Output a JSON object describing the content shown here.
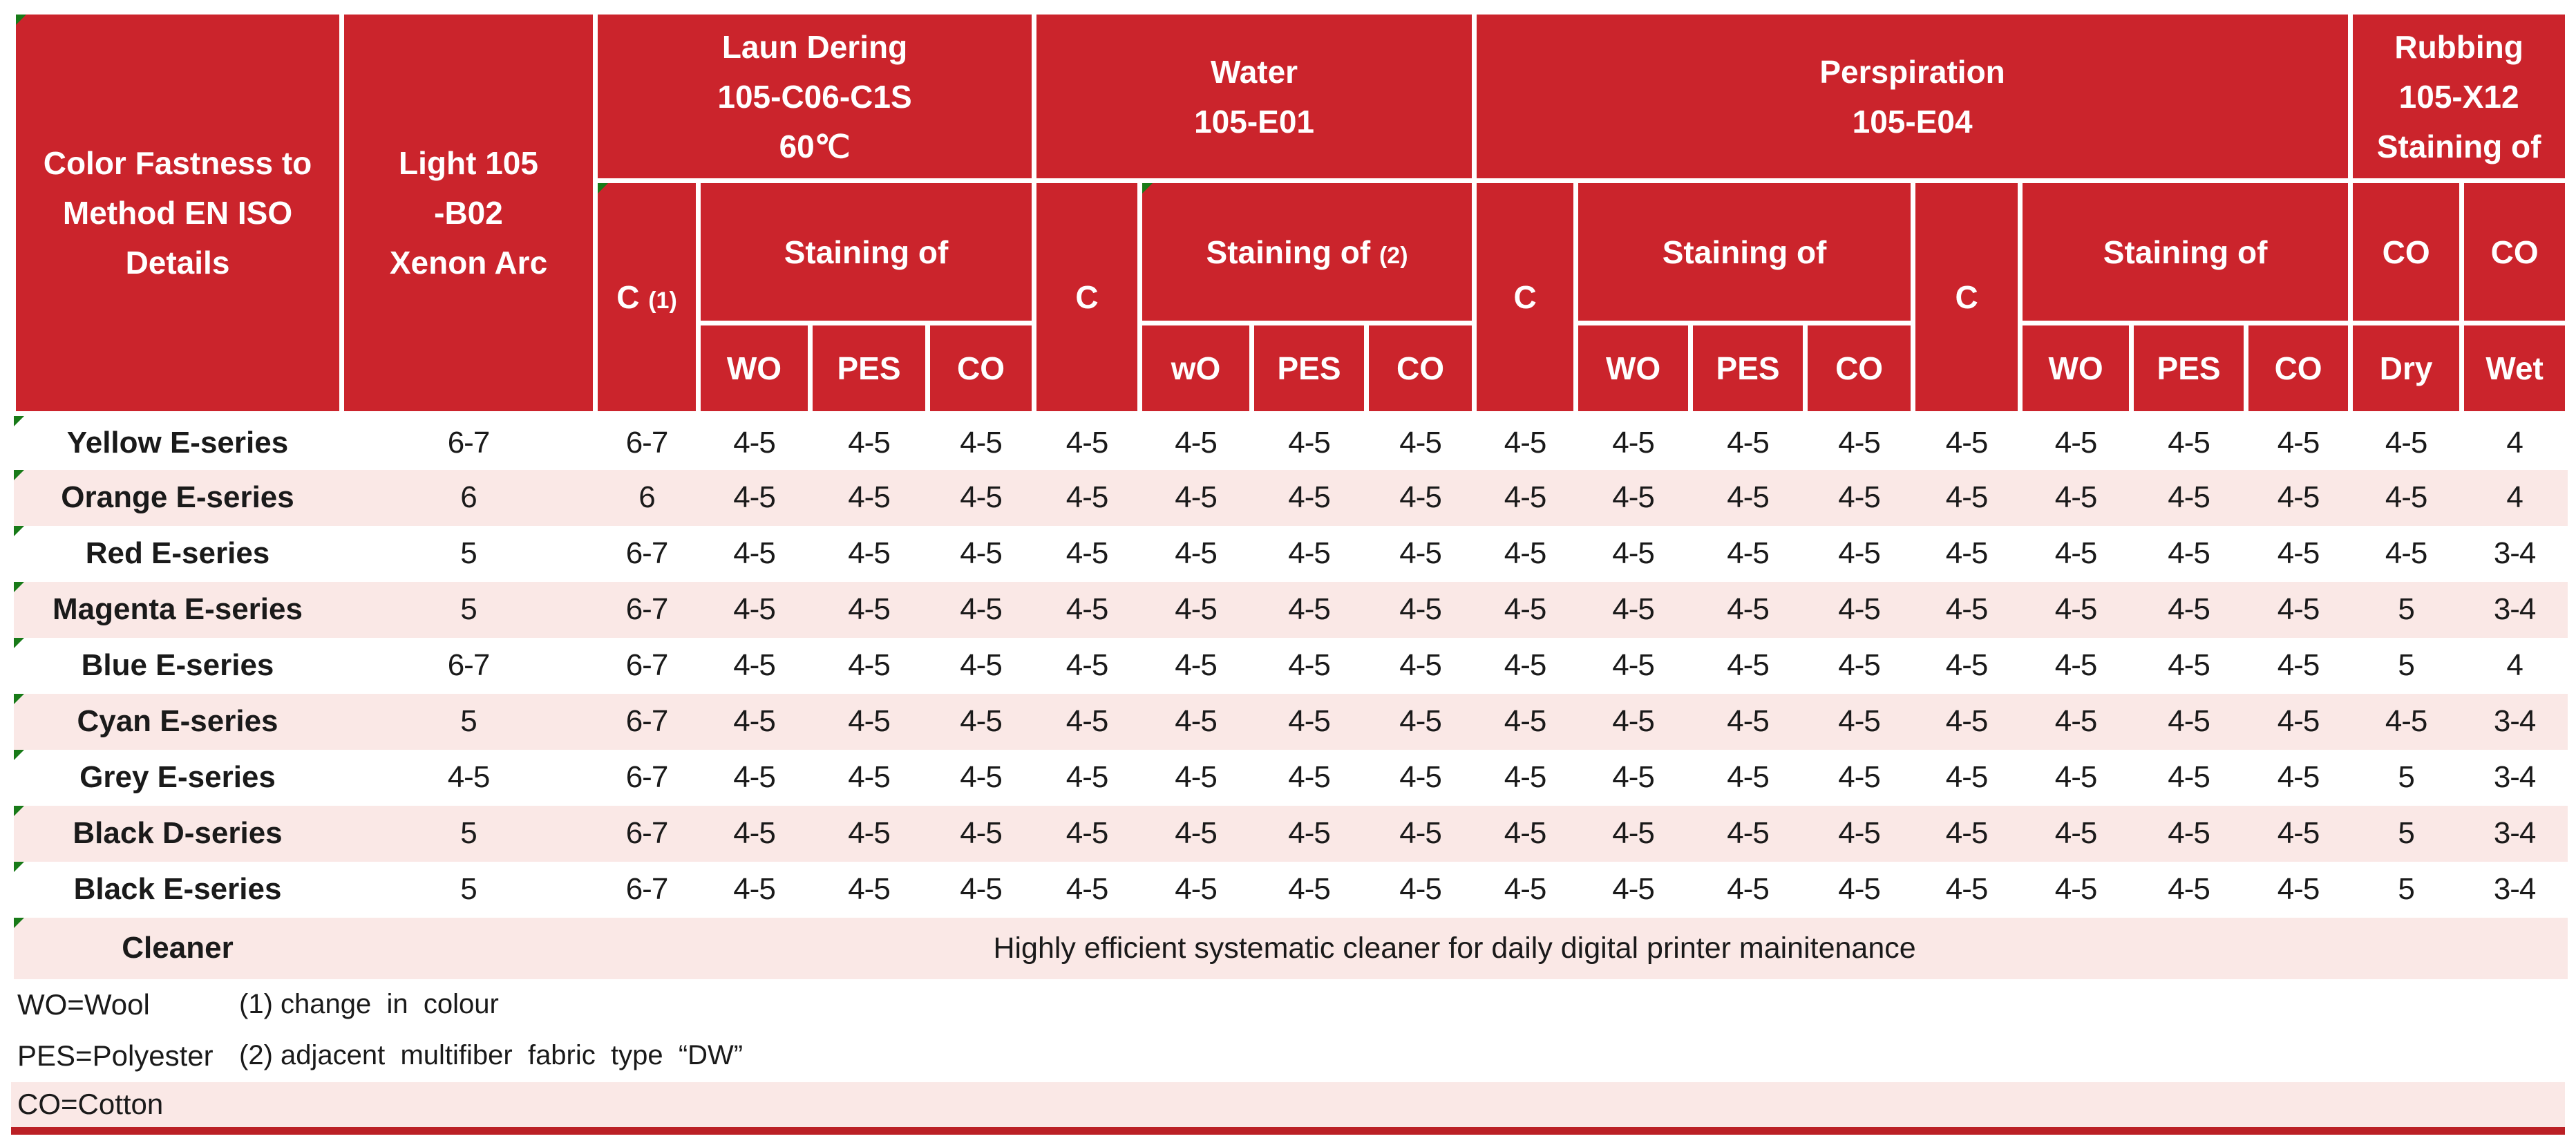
{
  "colors": {
    "red": "#cb242c",
    "pink": "#fae8e6",
    "green": "#187a18",
    "bar": "#bb2025",
    "text": "#1a1a1a"
  },
  "table": {
    "header": {
      "details": [
        "Color Fastness to",
        "Method EN ISO",
        "Details"
      ],
      "light": [
        "Light 105",
        "-B02",
        "Xenon Arc"
      ],
      "laundering": {
        "title": [
          "Laun Dering",
          "105-C06-C1S",
          "60℃"
        ],
        "c": "C",
        "c_note": "(1)",
        "staining": "Staining of",
        "cols": [
          "WO",
          "PES",
          "CO"
        ]
      },
      "water": {
        "title": [
          "Water",
          "105-E01"
        ],
        "c": "C",
        "staining": "Staining of",
        "staining_note": "(2)",
        "cols": [
          "wO",
          "PES",
          "CO"
        ]
      },
      "perspiration": {
        "title": [
          "Perspiration",
          "105-E04"
        ],
        "groups": [
          {
            "c": "C",
            "staining": "Staining of",
            "cols": [
              "WO",
              "PES",
              "CO"
            ]
          },
          {
            "c": "C",
            "staining": "Staining of",
            "cols": [
              "WO",
              "PES",
              "CO"
            ]
          }
        ]
      },
      "rubbing": {
        "title": [
          "Rubbing",
          "105-X12",
          "Staining of"
        ],
        "co_dry": "CO",
        "co_wet": "CO",
        "dry": "Dry",
        "wet": "Wet"
      }
    },
    "rows": [
      {
        "name": "Yellow E-series",
        "values": [
          "6-7",
          "6-7",
          "4-5",
          "4-5",
          "4-5",
          "4-5",
          "4-5",
          "4-5",
          "4-5",
          "4-5",
          "4-5",
          "4-5",
          "4-5",
          "4-5",
          "4-5",
          "4-5",
          "4-5",
          "4-5",
          "4"
        ]
      },
      {
        "name": "Orange E-series",
        "values": [
          "6",
          "6",
          "4-5",
          "4-5",
          "4-5",
          "4-5",
          "4-5",
          "4-5",
          "4-5",
          "4-5",
          "4-5",
          "4-5",
          "4-5",
          "4-5",
          "4-5",
          "4-5",
          "4-5",
          "4-5",
          "4"
        ]
      },
      {
        "name": "Red E-series",
        "values": [
          "5",
          "6-7",
          "4-5",
          "4-5",
          "4-5",
          "4-5",
          "4-5",
          "4-5",
          "4-5",
          "4-5",
          "4-5",
          "4-5",
          "4-5",
          "4-5",
          "4-5",
          "4-5",
          "4-5",
          "4-5",
          "3-4"
        ]
      },
      {
        "name": "Magenta E-series",
        "values": [
          "5",
          "6-7",
          "4-5",
          "4-5",
          "4-5",
          "4-5",
          "4-5",
          "4-5",
          "4-5",
          "4-5",
          "4-5",
          "4-5",
          "4-5",
          "4-5",
          "4-5",
          "4-5",
          "4-5",
          "5",
          "3-4"
        ]
      },
      {
        "name": "Blue E-series",
        "values": [
          "6-7",
          "6-7",
          "4-5",
          "4-5",
          "4-5",
          "4-5",
          "4-5",
          "4-5",
          "4-5",
          "4-5",
          "4-5",
          "4-5",
          "4-5",
          "4-5",
          "4-5",
          "4-5",
          "4-5",
          "5",
          "4"
        ]
      },
      {
        "name": "Cyan E-series",
        "values": [
          "5",
          "6-7",
          "4-5",
          "4-5",
          "4-5",
          "4-5",
          "4-5",
          "4-5",
          "4-5",
          "4-5",
          "4-5",
          "4-5",
          "4-5",
          "4-5",
          "4-5",
          "4-5",
          "4-5",
          "4-5",
          "3-4"
        ]
      },
      {
        "name": "Grey E-series",
        "values": [
          "4-5",
          "6-7",
          "4-5",
          "4-5",
          "4-5",
          "4-5",
          "4-5",
          "4-5",
          "4-5",
          "4-5",
          "4-5",
          "4-5",
          "4-5",
          "4-5",
          "4-5",
          "4-5",
          "4-5",
          "5",
          "3-4"
        ]
      },
      {
        "name": "Black D-series",
        "values": [
          "5",
          "6-7",
          "4-5",
          "4-5",
          "4-5",
          "4-5",
          "4-5",
          "4-5",
          "4-5",
          "4-5",
          "4-5",
          "4-5",
          "4-5",
          "4-5",
          "4-5",
          "4-5",
          "4-5",
          "5",
          "3-4"
        ]
      },
      {
        "name": "Black E-series",
        "values": [
          "5",
          "6-7",
          "4-5",
          "4-5",
          "4-5",
          "4-5",
          "4-5",
          "4-5",
          "4-5",
          "4-5",
          "4-5",
          "4-5",
          "4-5",
          "4-5",
          "4-5",
          "4-5",
          "4-5",
          "5",
          "3-4"
        ]
      }
    ],
    "cleaner": {
      "name": "Cleaner",
      "text": "Highly efficient systematic cleaner for daily digital printer mainitenance"
    }
  },
  "footer": {
    "legend": {
      "wo": "WO=Wool",
      "pes": "PES=Polyester",
      "co": "CO=Cotton"
    },
    "notes": {
      "note1": "(1) change  in  colour",
      "note2": "(2) adjacent  multifiber  fabric  type  “DW”"
    }
  }
}
